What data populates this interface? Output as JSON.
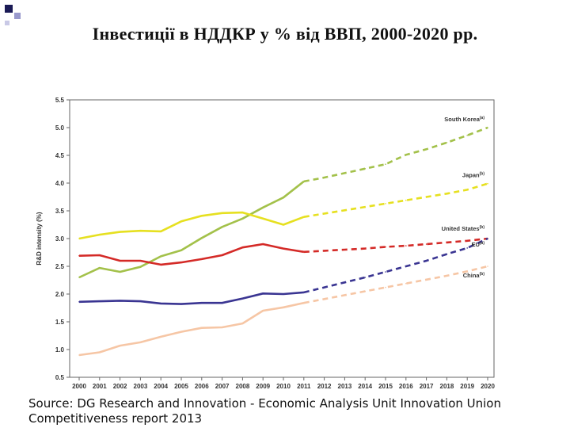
{
  "slide": {
    "title": "Інвестиції в НДДКР у % від ВВП, 2000-2020 рр.",
    "source": "Source: DG Research and Innovation - Economic Analysis Unit Innovation Union Competitiveness report 2013"
  },
  "chart_data": {
    "type": "line",
    "title": "",
    "xlabel": "",
    "ylabel": "R&D intensity (%)",
    "ylim": [
      0.5,
      5.5
    ],
    "y_ticks": [
      "0.5",
      "1.0",
      "1.5",
      "2.0",
      "2.5",
      "3.0",
      "3.5",
      "4.0",
      "4.5",
      "5.0",
      "5.5"
    ],
    "categories": [
      "2000",
      "2001",
      "2002",
      "2003",
      "2004",
      "2005",
      "2006",
      "2007",
      "2008",
      "2009",
      "2010",
      "2011",
      "2012",
      "2013",
      "2014",
      "2015",
      "2016",
      "2017",
      "2018",
      "2019",
      "2020"
    ],
    "projection_start": "2011",
    "series": [
      {
        "name": "South Korea",
        "label_suffix": "(a)",
        "color": "#a3c14a",
        "values": [
          2.3,
          2.47,
          2.4,
          2.49,
          2.68,
          2.79,
          3.01,
          3.21,
          3.36,
          3.56,
          3.74,
          4.03,
          4.1,
          4.18,
          4.26,
          4.34,
          4.51,
          4.61,
          4.73,
          4.86,
          5.0
        ]
      },
      {
        "name": "Japan",
        "label_suffix": "(b)",
        "color": "#e6e020",
        "values": [
          3.0,
          3.07,
          3.12,
          3.14,
          3.13,
          3.31,
          3.41,
          3.46,
          3.47,
          3.36,
          3.25,
          3.39,
          3.45,
          3.51,
          3.57,
          3.63,
          3.69,
          3.75,
          3.81,
          3.88,
          3.99
        ]
      },
      {
        "name": "United States",
        "label_suffix": "(b)",
        "color": "#d42a27",
        "values": [
          2.69,
          2.7,
          2.6,
          2.6,
          2.53,
          2.57,
          2.63,
          2.7,
          2.84,
          2.9,
          2.82,
          2.76,
          2.78,
          2.8,
          2.82,
          2.85,
          2.87,
          2.9,
          2.93,
          2.96,
          3.0
        ]
      },
      {
        "name": "EU",
        "label_suffix": "(a)",
        "color": "#3a3592",
        "values": [
          1.86,
          1.87,
          1.88,
          1.87,
          1.83,
          1.82,
          1.84,
          1.84,
          1.92,
          2.01,
          2.0,
          2.03,
          2.12,
          2.21,
          2.3,
          2.4,
          2.5,
          2.6,
          2.72,
          2.83,
          3.0
        ]
      },
      {
        "name": "China",
        "label_suffix": "(b)",
        "color": "#f6c6a5",
        "values": [
          0.9,
          0.95,
          1.07,
          1.13,
          1.23,
          1.32,
          1.39,
          1.4,
          1.47,
          1.7,
          1.76,
          1.84,
          1.91,
          1.98,
          2.05,
          2.12,
          2.19,
          2.26,
          2.33,
          2.41,
          2.5
        ]
      }
    ]
  }
}
